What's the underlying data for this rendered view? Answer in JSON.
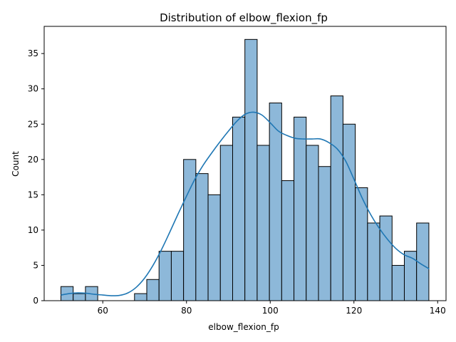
{
  "chart_data": {
    "type": "bar",
    "title": "Distribution of elbow_flexion_fp",
    "xlabel": "elbow_flexion_fp",
    "ylabel": "Count",
    "xlim": [
      46,
      142
    ],
    "ylim": [
      0,
      38.85
    ],
    "xticks": [
      60,
      80,
      100,
      120,
      140
    ],
    "yticks": [
      0,
      5,
      10,
      15,
      20,
      25,
      30,
      35
    ],
    "grid": false,
    "bin_start": 50.0,
    "bin_width": 2.93,
    "counts": [
      2,
      1,
      2,
      0,
      0,
      0,
      1,
      3,
      7,
      7,
      20,
      18,
      15,
      22,
      26,
      37,
      22,
      28,
      17,
      26,
      22,
      19,
      29,
      25,
      16,
      11,
      12,
      5,
      7,
      11
    ],
    "kde": {
      "x": [
        50,
        52,
        54,
        56,
        58,
        60,
        62,
        64,
        66,
        68,
        70,
        72,
        74,
        76,
        78,
        80,
        82,
        84,
        86,
        88,
        90,
        92,
        94,
        96,
        98,
        100,
        102,
        104,
        106,
        108,
        110,
        112,
        114,
        116,
        118,
        120,
        122,
        124,
        126,
        128,
        130,
        132,
        134,
        136,
        138
      ],
      "y": [
        0.8,
        1.0,
        1.1,
        1.05,
        0.9,
        0.8,
        0.7,
        0.75,
        1.1,
        1.9,
        3.2,
        5.0,
        7.2,
        9.7,
        12.3,
        14.8,
        17.2,
        19.2,
        20.9,
        22.5,
        24.0,
        25.4,
        26.4,
        26.7,
        26.3,
        25.2,
        24.0,
        23.4,
        23.0,
        22.9,
        22.9,
        22.9,
        22.4,
        21.5,
        19.8,
        17.2,
        14.5,
        12.2,
        10.3,
        8.7,
        7.4,
        6.5,
        6.0,
        5.2,
        4.5
      ]
    },
    "colors": {
      "bar_fill": "#8db8d9",
      "kde_line": "#1f77b4"
    }
  }
}
